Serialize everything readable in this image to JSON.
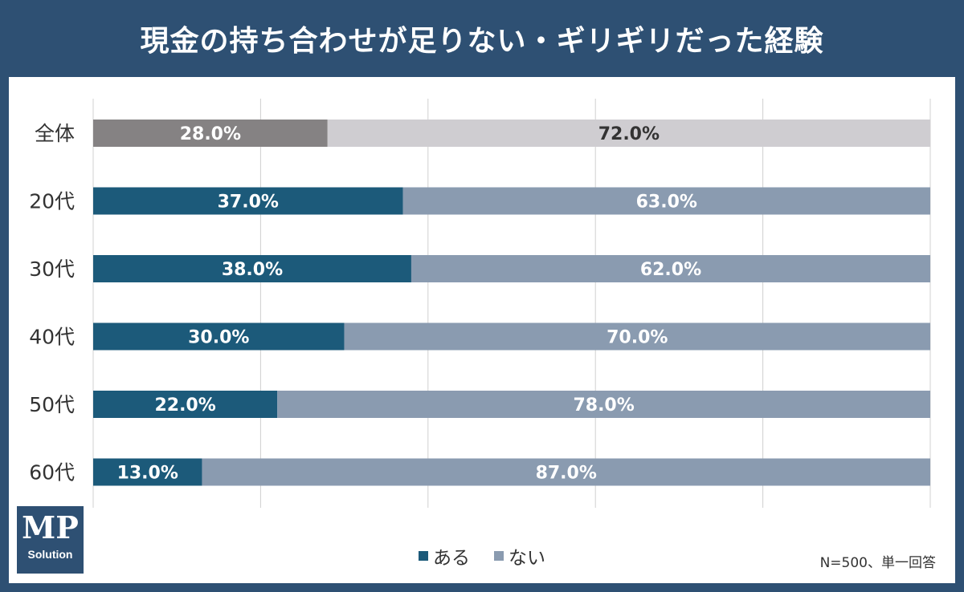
{
  "title": "現金の持ち合わせが足りない・ギリギリだった経験",
  "logo": {
    "main": "MP",
    "sub": "Solution"
  },
  "note": "N=500、単一回答",
  "legend": [
    {
      "label": "ある",
      "color": "#1c5a7a"
    },
    {
      "label": "ない",
      "color": "#8a9bb0"
    }
  ],
  "colors": {
    "overall_yes": "#858283",
    "overall_no": "#cfcdd1",
    "yes": "#1c5a7a",
    "no": "#8a9bb0"
  },
  "chart_data": {
    "type": "bar",
    "stacked": true,
    "orientation": "horizontal",
    "title": "現金の持ち合わせが足りない・ギリギリだった経験",
    "categories": [
      "全体",
      "20代",
      "30代",
      "40代",
      "50代",
      "60代"
    ],
    "series": [
      {
        "name": "ある",
        "values": [
          28.0,
          37.0,
          38.0,
          30.0,
          22.0,
          13.0
        ],
        "labels": [
          "28.0%",
          "37.0%",
          "38.0%",
          "30.0%",
          "22.0%",
          "13.0%"
        ]
      },
      {
        "name": "ない",
        "values": [
          72.0,
          63.0,
          62.0,
          70.0,
          78.0,
          87.0
        ],
        "labels": [
          "72.0%",
          "63.0%",
          "62.0%",
          "70.0%",
          "78.0%",
          "87.0%"
        ]
      }
    ],
    "xlim": [
      0,
      100
    ],
    "grid": true,
    "legend_position": "bottom"
  }
}
